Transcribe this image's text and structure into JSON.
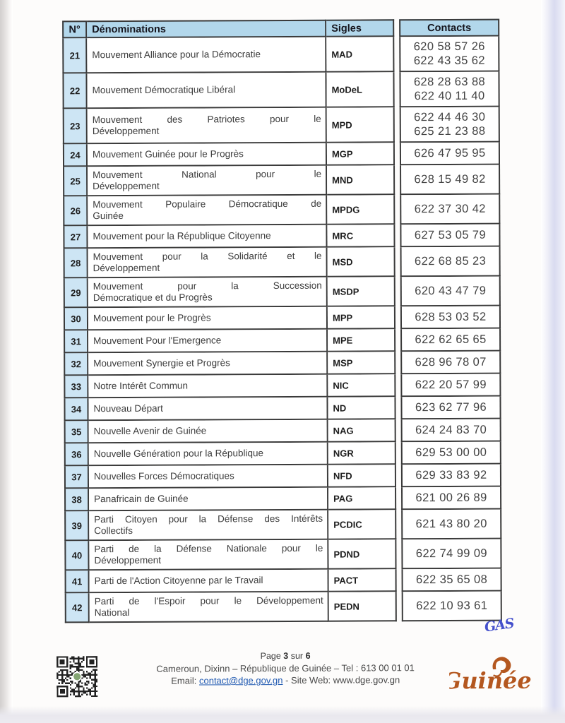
{
  "table": {
    "headers": {
      "num": "N°",
      "denomination": "Dénominations",
      "sigle": "Sigles",
      "contacts": "Contacts"
    },
    "rows": [
      {
        "n": "21",
        "denomination": "Mouvement Alliance pour la Démocratie",
        "sigle": "MAD",
        "contacts": [
          "620 58 57 26",
          "622 43 35 62"
        ]
      },
      {
        "n": "22",
        "denomination": "Mouvement Démocratique Libéral",
        "sigle": "MoDeL",
        "contacts": [
          "628 28 63 88",
          "622 40 11 40"
        ]
      },
      {
        "n": "23",
        "denomination": "Mouvement des Patriotes pour le Développement",
        "lines": [
          "Mouvement des Patriotes pour le",
          "Développement"
        ],
        "sigle": "MPD",
        "contacts": [
          "622 44 46 30",
          "625 21 23 88"
        ]
      },
      {
        "n": "24",
        "denomination": "Mouvement Guinée pour le Progrès",
        "sigle": "MGP",
        "contacts": [
          "626 47 95 95"
        ]
      },
      {
        "n": "25",
        "denomination": "Mouvement National pour le Développement",
        "lines": [
          "Mouvement National pour le",
          "Développement"
        ],
        "sigle": "MND",
        "contacts": [
          "628 15 49 82"
        ]
      },
      {
        "n": "26",
        "denomination": "Mouvement Populaire Démocratique de Guinée",
        "lines": [
          "Mouvement Populaire Démocratique de",
          "Guinée"
        ],
        "sigle": "MPDG",
        "contacts": [
          "622 37 30 42"
        ]
      },
      {
        "n": "27",
        "denomination": "Mouvement pour la République Citoyenne",
        "sigle": "MRC",
        "contacts": [
          "627 53 05 79"
        ]
      },
      {
        "n": "28",
        "denomination": "Mouvement pour la Solidarité et le Développement",
        "lines": [
          "Mouvement pour la Solidarité et le",
          "Développement"
        ],
        "sigle": "MSD",
        "contacts": [
          "622 68 85 23"
        ]
      },
      {
        "n": "29",
        "denomination": "Mouvement pour la Succession Démocratique et du Progrès",
        "lines": [
          "Mouvement pour la Succession",
          "Démocratique et du Progrès"
        ],
        "sigle": "MSDP",
        "contacts": [
          "620 43 47 79"
        ]
      },
      {
        "n": "30",
        "denomination": "Mouvement pour le Progrès",
        "sigle": "MPP",
        "contacts": [
          "628 53 03 52"
        ]
      },
      {
        "n": "31",
        "denomination": "Mouvement Pour l'Emergence",
        "sigle": "MPE",
        "contacts": [
          "622 62 65 65"
        ]
      },
      {
        "n": "32",
        "denomination": "Mouvement Synergie et Progrès",
        "sigle": "MSP",
        "contacts": [
          "628 96 78 07"
        ]
      },
      {
        "n": "33",
        "denomination": "Notre Intérêt Commun",
        "sigle": "NIC",
        "contacts": [
          "622 20 57 99"
        ]
      },
      {
        "n": "34",
        "denomination": "Nouveau Départ",
        "sigle": "ND",
        "contacts": [
          "623 62 77 96"
        ]
      },
      {
        "n": "35",
        "denomination": "Nouvelle Avenir de Guinée",
        "sigle": "NAG",
        "contacts": [
          "624 24 83 70"
        ]
      },
      {
        "n": "36",
        "denomination": "Nouvelle Génération pour la République",
        "sigle": "NGR",
        "contacts": [
          "629 53 00 00"
        ]
      },
      {
        "n": "37",
        "denomination": "Nouvelles Forces Démocratiques",
        "sigle": "NFD",
        "contacts": [
          "629 33 83 92"
        ]
      },
      {
        "n": "38",
        "denomination": "Panafricain de Guinée",
        "sigle": "PAG",
        "contacts": [
          "621 00 26 89"
        ]
      },
      {
        "n": "39",
        "denomination": "Parti Citoyen pour la Défense des Intérêts Collectifs",
        "lines": [
          "Parti Citoyen pour la Défense des Intérêts",
          "Collectifs"
        ],
        "sigle": "PCDIC",
        "contacts": [
          "621 43 80 20"
        ]
      },
      {
        "n": "40",
        "denomination": "Parti de la Défense Nationale pour le Développement",
        "lines": [
          "Parti de la Défense Nationale pour le",
          "Développement"
        ],
        "sigle": "PDND",
        "contacts": [
          "622 74 99 09"
        ]
      },
      {
        "n": "41",
        "denomination": "Parti de l'Action Citoyenne par le Travail",
        "sigle": "PACT",
        "contacts": [
          "622 35 65 08"
        ]
      },
      {
        "n": "42",
        "denomination": "Parti de l'Espoir pour le Développement National",
        "lines": [
          "Parti de l'Espoir pour le Développement",
          "National"
        ],
        "sigle": "PEDN",
        "contacts": [
          "622 10 93 61"
        ]
      }
    ]
  },
  "footer": {
    "page": {
      "label": "Page",
      "current": "3",
      "separator": "sur",
      "total": "6"
    },
    "address_line": "Cameroun, Dixinn – République de Guinée – Tel : 613 00 01 01",
    "email_label": "Email:",
    "email": "contact@dge.gov.gn",
    "website_label": "- Site Web: www.dge.gov.gn",
    "logo_text": "Guinée"
  },
  "annotations": {
    "signature_initials": "GAS"
  },
  "colors": {
    "table_header_bg": "#b2d7eb",
    "row_number_bg": "#cde5f4",
    "table_border": "#3a3a3a",
    "body_text": "#3c3c3c",
    "header_text": "#14141c",
    "link_blue": "#1d57b0",
    "logo_brown": "#b4571f",
    "signature_blue": "#4450cc"
  }
}
